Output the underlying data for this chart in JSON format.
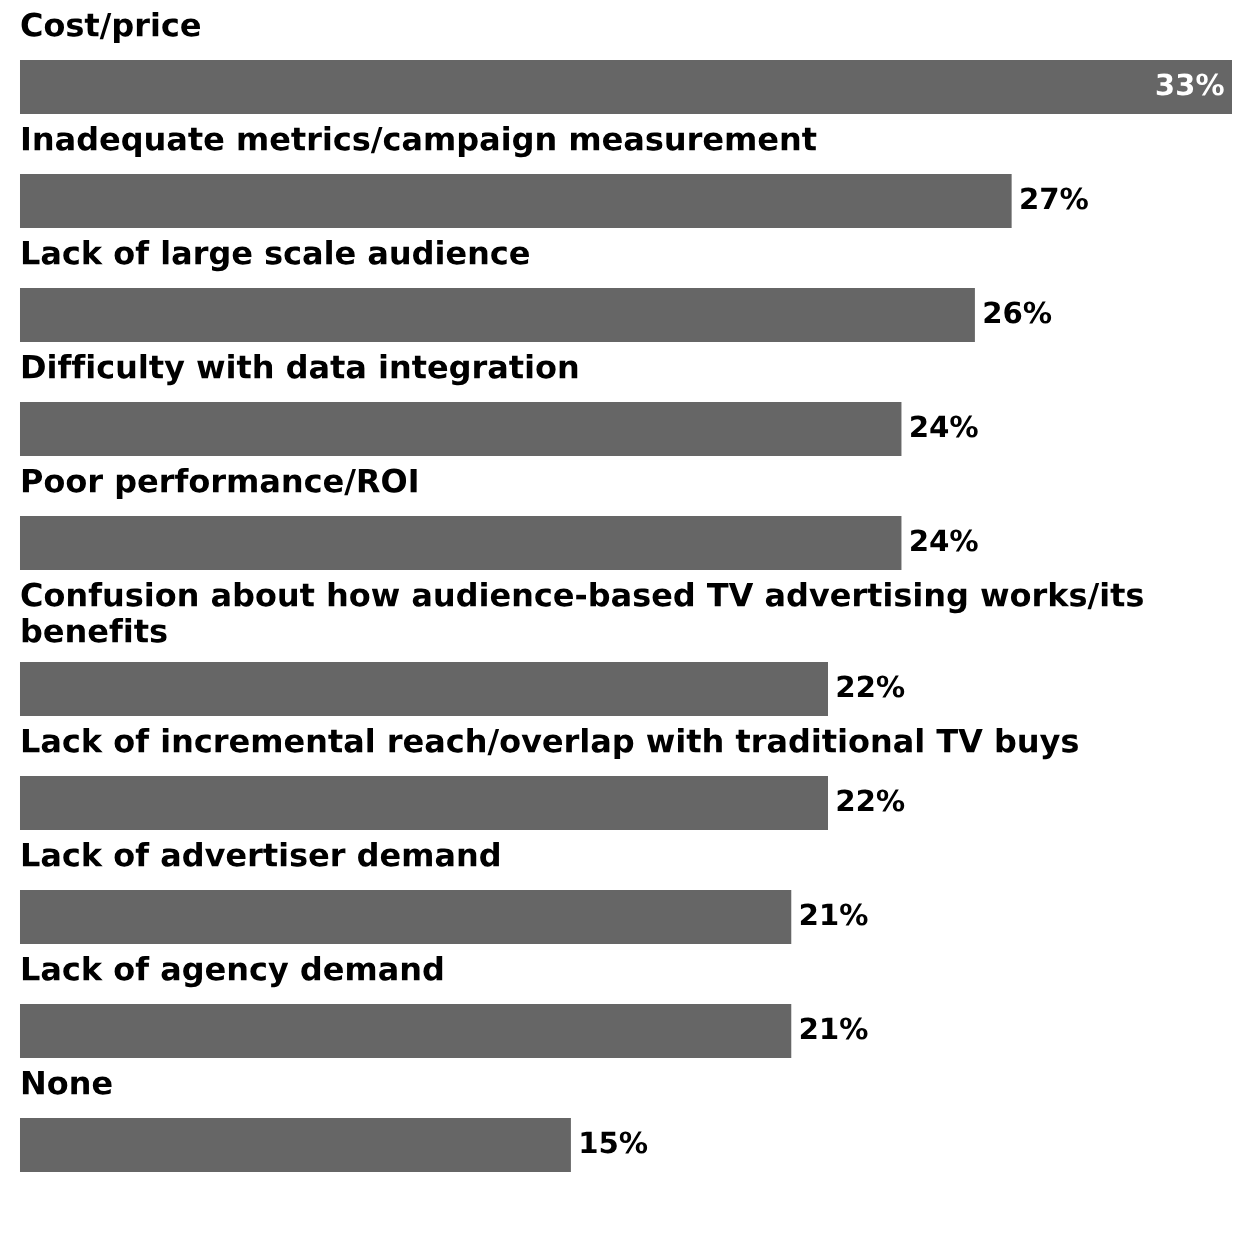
{
  "chart_data": {
    "type": "bar",
    "orientation": "horizontal",
    "data_labels": true,
    "categories": [
      "Cost/price",
      "Inadequate metrics/campaign measurement",
      "Lack of large scale audience",
      "Difficulty with data integration",
      "Poor performance/ROI",
      "Confusion about how audience-based TV advertising works/its benefits",
      "Lack of incremental reach/overlap with traditional TV buys",
      "Lack of advertiser demand",
      "Lack of agency demand",
      "None"
    ],
    "values": [
      33,
      27,
      26,
      24,
      24,
      22,
      22,
      21,
      21,
      15
    ],
    "value_labels": [
      "33%",
      "27%",
      "26%",
      "24%",
      "24%",
      "22%",
      "22%",
      "21%",
      "21%",
      "15%"
    ],
    "color": "#666666"
  }
}
